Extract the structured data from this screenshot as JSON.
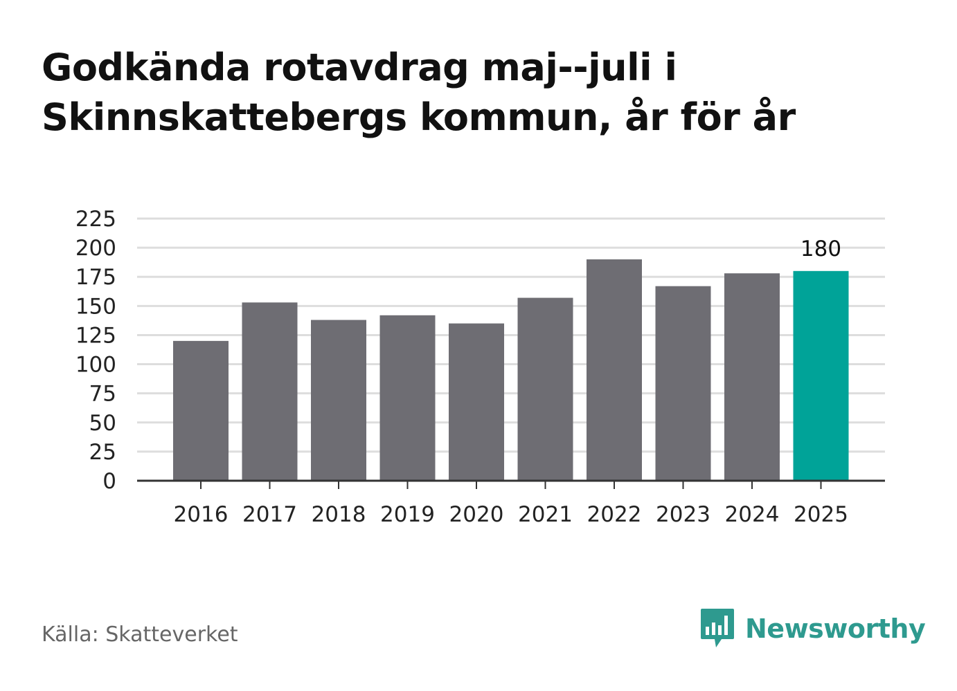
{
  "title_lines": [
    "Godkända rotavdrag maj--juli i",
    "Skinnskattebergs kommun, år för år"
  ],
  "source": "Källa: Skatteverket",
  "brand": {
    "name": "Newsworthy",
    "icon": "newsworthy-logo-icon",
    "color": "#2e9a8f"
  },
  "colors": {
    "bar": "#6e6d73",
    "highlight": "#00a398",
    "grid": "#dddddd",
    "axis": "#333333"
  },
  "chart_data": {
    "type": "bar",
    "title": "Godkända rotavdrag maj--juli i Skinnskattebergs kommun, år för år",
    "xlabel": "",
    "ylabel": "",
    "categories": [
      "2016",
      "2017",
      "2018",
      "2019",
      "2020",
      "2021",
      "2022",
      "2023",
      "2024",
      "2025"
    ],
    "values": [
      120,
      153,
      138,
      142,
      135,
      157,
      190,
      167,
      178,
      180
    ],
    "highlight_index": 9,
    "data_labels": [
      {
        "index": 9,
        "text": "180"
      }
    ],
    "ylim": [
      0,
      225
    ],
    "yticks": [
      0,
      25,
      50,
      75,
      100,
      125,
      150,
      175,
      200,
      225
    ],
    "grid": true,
    "legend": "none"
  }
}
